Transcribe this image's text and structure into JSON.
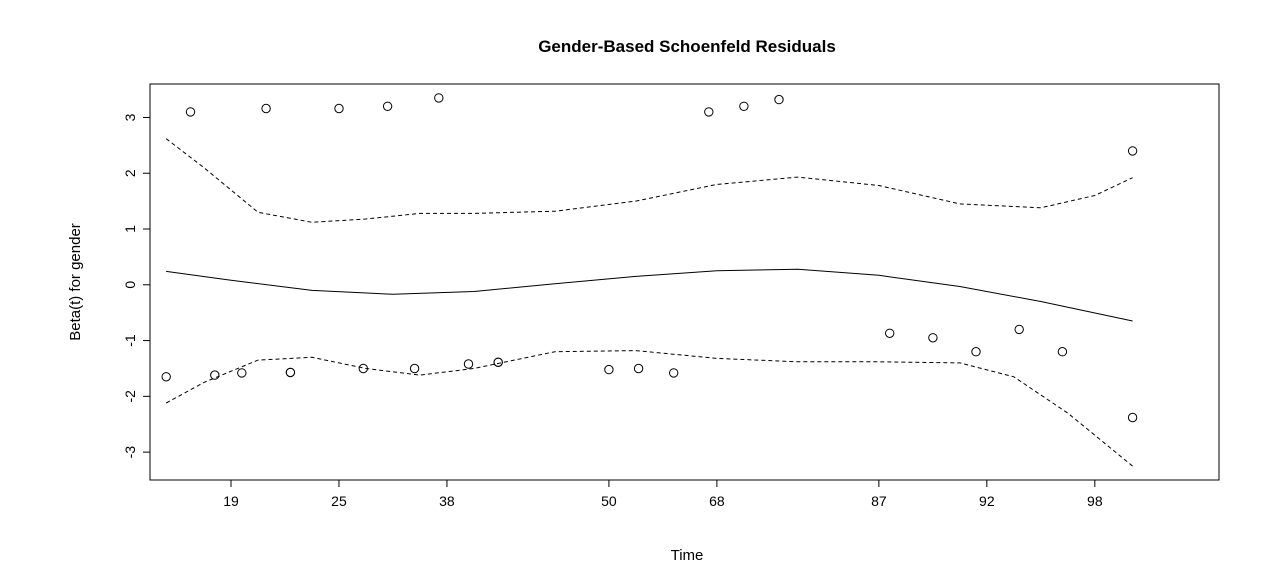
{
  "chart_data": {
    "type": "scatter",
    "title": "Gender-Based Schoenfeld Residuals",
    "xlabel": "Time",
    "ylabel": "Beta(t) for gender",
    "x_tick_labels": [
      "19",
      "25",
      "38",
      "50",
      "68",
      "87",
      "92",
      "98"
    ],
    "x_tick_positions": [
      2,
      4,
      6,
      9,
      11,
      14,
      16,
      18
    ],
    "x_range": [
      0.5,
      20.3
    ],
    "y_ticks": [
      -3,
      -2,
      -1,
      0,
      1,
      2,
      3
    ],
    "y_range": [
      -3.5,
      3.6
    ],
    "grid": false,
    "points": [
      {
        "x": 0.8,
        "y": -1.65
      },
      {
        "x": 1.25,
        "y": 3.1
      },
      {
        "x": 1.7,
        "y": -1.62
      },
      {
        "x": 2.2,
        "y": -1.58
      },
      {
        "x": 2.65,
        "y": 3.16
      },
      {
        "x": 3.1,
        "y": -1.57
      },
      {
        "x": 3.1,
        "y": -1.57
      },
      {
        "x": 4.0,
        "y": 3.16
      },
      {
        "x": 4.45,
        "y": -1.5
      },
      {
        "x": 4.9,
        "y": 3.2
      },
      {
        "x": 5.4,
        "y": -1.5
      },
      {
        "x": 5.85,
        "y": 3.35
      },
      {
        "x": 6.4,
        "y": -1.42
      },
      {
        "x": 6.95,
        "y": -1.39
      },
      {
        "x": 6.95,
        "y": -1.39
      },
      {
        "x": 9.0,
        "y": -1.52
      },
      {
        "x": 9.55,
        "y": -1.5
      },
      {
        "x": 10.2,
        "y": -1.58
      },
      {
        "x": 10.85,
        "y": 3.1
      },
      {
        "x": 11.5,
        "y": 3.2
      },
      {
        "x": 12.15,
        "y": 3.32
      },
      {
        "x": 14.2,
        "y": -0.87
      },
      {
        "x": 15.0,
        "y": -0.95
      },
      {
        "x": 15.8,
        "y": -1.2
      },
      {
        "x": 16.6,
        "y": -0.8
      },
      {
        "x": 17.4,
        "y": -1.2
      },
      {
        "x": 18.7,
        "y": -2.38
      },
      {
        "x": 18.7,
        "y": 2.4
      }
    ],
    "series": [
      {
        "style": "solid",
        "x": [
          0.8,
          2.0,
          3.5,
          5.0,
          6.5,
          8.0,
          9.5,
          11.0,
          12.5,
          14.0,
          15.5,
          17.0,
          18.7
        ],
        "y": [
          0.24,
          0.08,
          -0.1,
          -0.17,
          -0.12,
          0.02,
          0.15,
          0.25,
          0.28,
          0.17,
          -0.03,
          -0.3,
          -0.65
        ]
      },
      {
        "style": "dashed",
        "x": [
          0.8,
          1.5,
          2.5,
          3.5,
          4.5,
          5.5,
          6.5,
          8.0,
          9.5,
          11.0,
          12.5,
          14.0,
          15.5,
          17.0,
          18.0,
          18.7
        ],
        "y": [
          2.62,
          2.1,
          1.3,
          1.12,
          1.18,
          1.28,
          1.28,
          1.32,
          1.5,
          1.8,
          1.93,
          1.78,
          1.45,
          1.38,
          1.6,
          1.92
        ]
      },
      {
        "style": "dashed",
        "x": [
          0.8,
          1.5,
          2.5,
          3.5,
          4.5,
          5.5,
          6.5,
          8.0,
          9.5,
          11.0,
          12.5,
          14.0,
          15.5,
          16.5,
          17.5,
          18.7
        ],
        "y": [
          -2.12,
          -1.75,
          -1.35,
          -1.3,
          -1.5,
          -1.62,
          -1.5,
          -1.2,
          -1.18,
          -1.32,
          -1.38,
          -1.38,
          -1.4,
          -1.65,
          -2.3,
          -3.25
        ]
      }
    ]
  }
}
